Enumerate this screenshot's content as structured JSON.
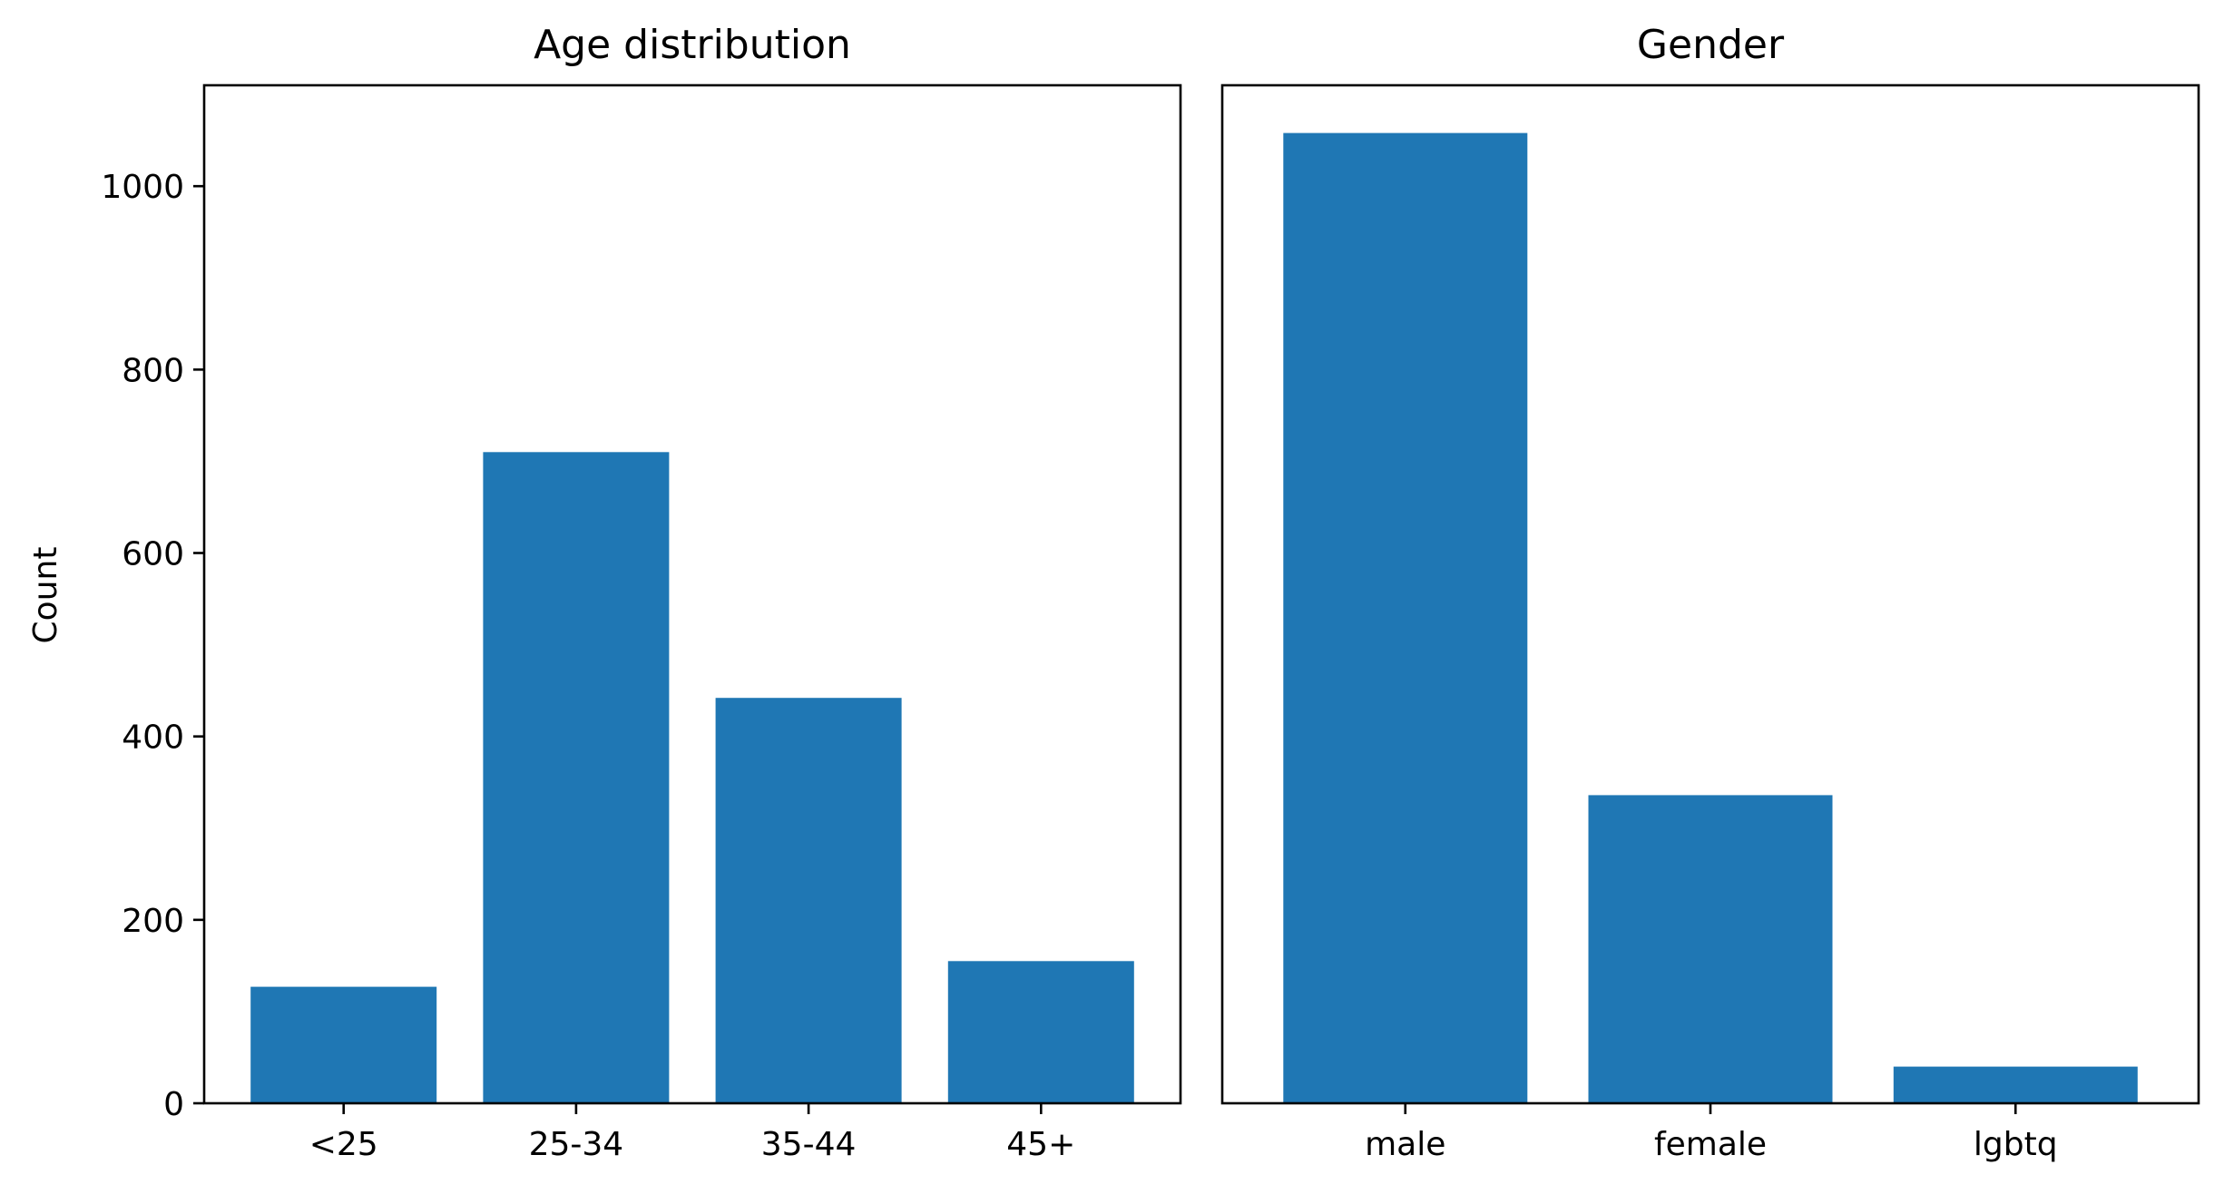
{
  "chart_data": [
    {
      "type": "bar",
      "title": "Age distribution",
      "xlabel": "",
      "ylabel": "Count",
      "categories": [
        "<25",
        "25-34",
        "35-44",
        "45+"
      ],
      "values": [
        127,
        710,
        442,
        155
      ],
      "ylim": [
        0,
        1110
      ],
      "yticks": [
        0,
        200,
        400,
        600,
        800,
        1000
      ],
      "color": "#1f77b4",
      "grid": false
    },
    {
      "type": "bar",
      "title": "Gender",
      "xlabel": "",
      "ylabel": "",
      "categories": [
        "male",
        "female",
        "lgbtq"
      ],
      "values": [
        1058,
        336,
        40
      ],
      "ylim": [
        0,
        1110
      ],
      "yticks": [],
      "color": "#1f77b4",
      "grid": false
    }
  ]
}
